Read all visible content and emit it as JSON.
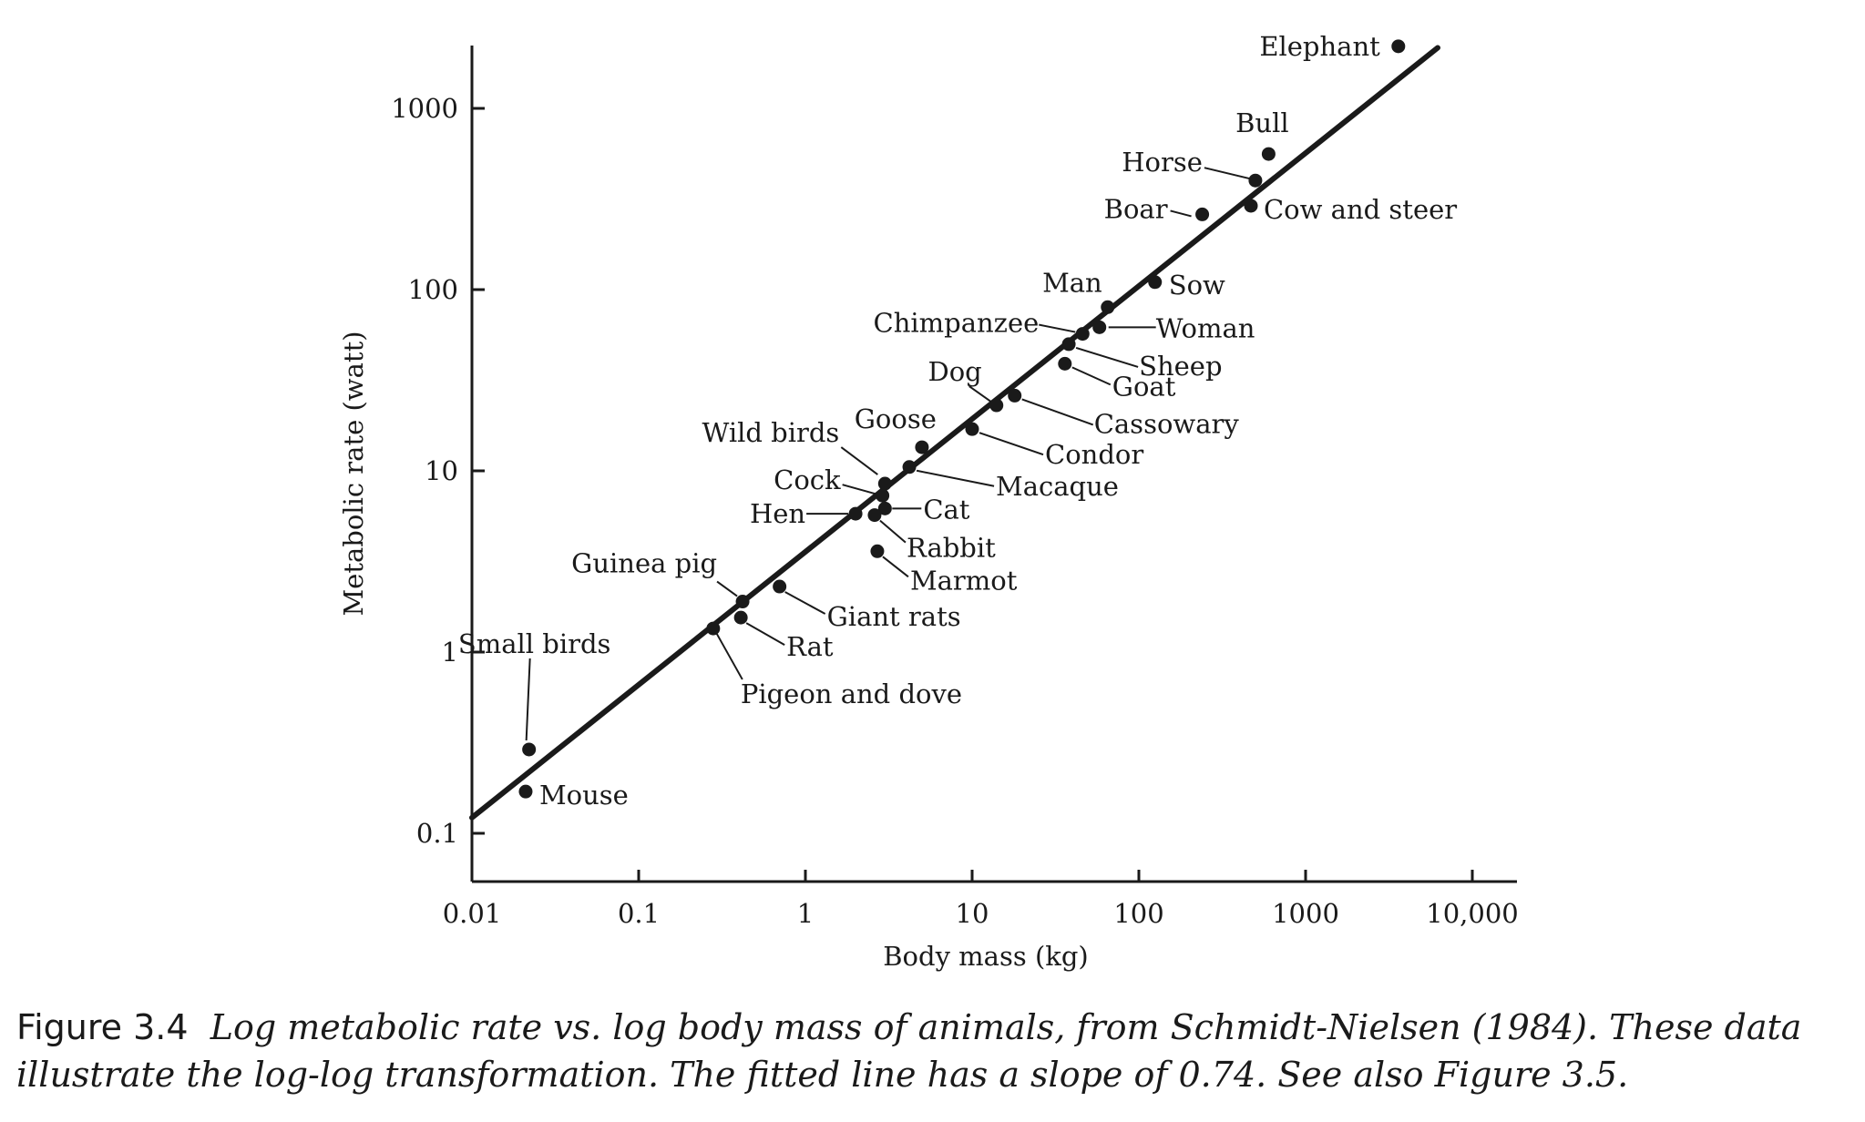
{
  "chart_data": {
    "type": "scatter",
    "title": "",
    "xlabel": "Body mass (kg)",
    "ylabel": "Metabolic rate (watt)",
    "x_scale": "log",
    "y_scale": "log",
    "xlim": [
      0.01,
      10000
    ],
    "ylim": [
      0.1,
      2500
    ],
    "grid": false,
    "x_ticks": [
      0.01,
      0.1,
      1,
      10,
      100,
      1000,
      10000
    ],
    "x_tick_labels": [
      "0.01",
      "0.1",
      "1",
      "10",
      "100",
      "1000",
      "10,000"
    ],
    "y_ticks": [
      0.1,
      1,
      10,
      100,
      1000
    ],
    "y_tick_labels": [
      "0.1",
      "1",
      "10",
      "100",
      "1000"
    ],
    "points": [
      {
        "label": "Elephant",
        "x": 3600,
        "y": 2200
      },
      {
        "label": "Bull",
        "x": 600,
        "y": 560
      },
      {
        "label": "Horse",
        "x": 500,
        "y": 400
      },
      {
        "label": "Cow and steer",
        "x": 470,
        "y": 290
      },
      {
        "label": "Boar",
        "x": 240,
        "y": 260
      },
      {
        "label": "Sow",
        "x": 125,
        "y": 110
      },
      {
        "label": "Man",
        "x": 65,
        "y": 80
      },
      {
        "label": "Woman",
        "x": 58,
        "y": 62
      },
      {
        "label": "Chimpanzee",
        "x": 46,
        "y": 57
      },
      {
        "label": "Sheep",
        "x": 38,
        "y": 50
      },
      {
        "label": "Goat",
        "x": 36,
        "y": 39
      },
      {
        "label": "Cassowary",
        "x": 18,
        "y": 26
      },
      {
        "label": "Dog",
        "x": 14,
        "y": 23
      },
      {
        "label": "Condor",
        "x": 10,
        "y": 17
      },
      {
        "label": "Goose",
        "x": 5,
        "y": 13.5
      },
      {
        "label": "Macaque",
        "x": 4.2,
        "y": 10.5
      },
      {
        "label": "Wild birds",
        "x": 3,
        "y": 8.5
      },
      {
        "label": "Cock",
        "x": 2.9,
        "y": 7.3
      },
      {
        "label": "Cat",
        "x": 3,
        "y": 6.2
      },
      {
        "label": "Hen",
        "x": 2,
        "y": 5.8
      },
      {
        "label": "Rabbit",
        "x": 2.6,
        "y": 5.7
      },
      {
        "label": "Marmot",
        "x": 2.7,
        "y": 3.6
      },
      {
        "label": "Giant rats",
        "x": 0.7,
        "y": 2.3
      },
      {
        "label": "Guinea pig",
        "x": 0.42,
        "y": 1.9
      },
      {
        "label": "Rat",
        "x": 0.41,
        "y": 1.55
      },
      {
        "label": "Pigeon and dove",
        "x": 0.28,
        "y": 1.35
      },
      {
        "label": "Small birds",
        "x": 0.022,
        "y": 0.29
      },
      {
        "label": "Mouse",
        "x": 0.021,
        "y": 0.17
      }
    ],
    "fit_line": {
      "slope": 0.74,
      "x": [
        0.01,
        6200
      ],
      "y": [
        0.122,
        2160
      ]
    }
  },
  "caption": {
    "label": "Figure 3.4",
    "text": "Log metabolic rate vs. log body mass of animals, from Schmidt-Nielsen (1984). These data illustrate the log-log transformation. The fitted line has a slope of 0.74. See also Figure 3.5."
  }
}
